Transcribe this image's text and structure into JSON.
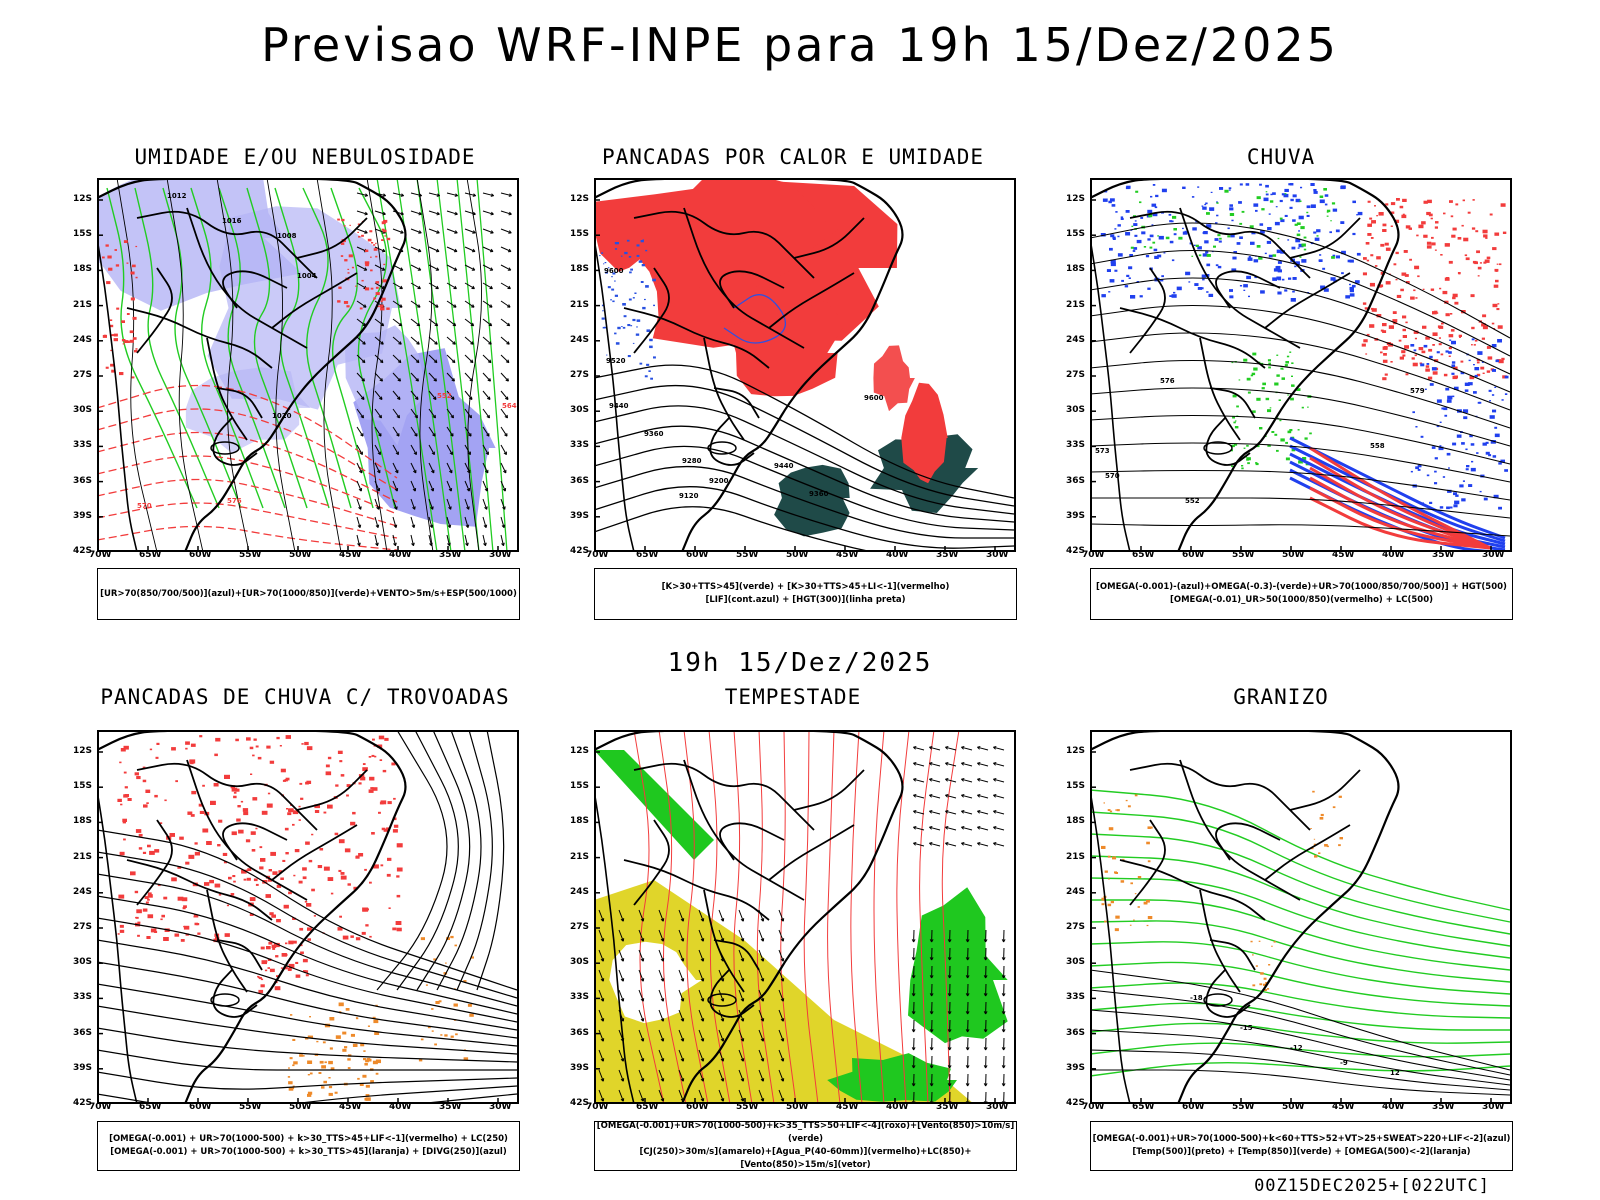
{
  "header": {
    "title": "Previsao WRF-INPE  para 19h 15/Dez/2025"
  },
  "mid_time": "19h 15/Dez/2025",
  "footer": "00Z15DEC2025+[022UTC]",
  "axes": {
    "lat_labels": [
      "12S",
      "15S",
      "18S",
      "21S",
      "24S",
      "27S",
      "30S",
      "33S",
      "36S",
      "39S",
      "42S"
    ],
    "lon_labels": [
      "70W",
      "65W",
      "60W",
      "55W",
      "50W",
      "45W",
      "40W",
      "35W",
      "30W"
    ]
  },
  "panels": [
    {
      "title": "UMIDADE E/OU NEBULOSIDADE",
      "legend": [
        "[UR>70(850/700/500)](azul)+[UR>70(1000/850)](verde)+VENTO>5m/s+ESP(500/1000)"
      ]
    },
    {
      "title": "PANCADAS POR CALOR E UMIDADE",
      "legend": [
        "[K>30+TTS>45](verde) + [K>30+TTS>45+LI<-1](vermelho)",
        "[LIF](cont.azul) + [HGT(300)](linha preta)"
      ]
    },
    {
      "title": "CHUVA",
      "legend": [
        "[OMEGA(-0.001)-(azul)+OMEGA(-0.3)-(verde)+UR>70(1000/850/700/500)] + HGT(500)",
        "[OMEGA(-0.01)_UR>50(1000/850)(vermelho) + LC(500)"
      ]
    },
    {
      "title": "PANCADAS DE CHUVA C/ TROVOADAS",
      "legend": [
        "[OMEGA(-0.001) + UR>70(1000-500) + k>30_TTS>45+LIF<-1](vermelho) + LC(250)",
        "[OMEGA(-0.001) + UR>70(1000-500) + k>30_TTS>45](laranja) + [DIVG(250)](azul)"
      ]
    },
    {
      "title": "TEMPESTADE",
      "legend": [
        "[OMEGA(-0.001)+UR>70(1000-500)+k>35_TTS>50+LIF<-4](roxo)+[Vento(850)>10m/s](verde)",
        "[CJ(250)>30m/s](amarelo)+[Agua_P(40-60mm)](vermelho)+LC(850)+[Vento(850)>15m/s](vetor)"
      ]
    },
    {
      "title": "GRANIZO",
      "legend": [
        "[OMEGA(-0.001)+UR>70(1000-500)+k<60+TTS>52+VT>25+SWEAT>220+LIF<-2](azul)",
        "[Temp(500)](preto) + [Temp(850)](verde) + [OMEGA(500)<-2](laranja)"
      ]
    }
  ],
  "contour_labels": {
    "p1": [
      "1012",
      "1008",
      "1004",
      "1016",
      "1020",
      "552",
      "564",
      "570",
      "576"
    ],
    "p2": [
      "9600",
      "9520",
      "9440",
      "9360",
      "9280",
      "9200",
      "9120"
    ],
    "p3": [
      "570",
      "573",
      "576",
      "579",
      "558",
      "552"
    ],
    "p6": [
      "-18",
      "-15",
      "-12",
      "-9",
      "12"
    ]
  },
  "colors": {
    "blue": "#8c8cf0",
    "lightblue": "#b4b4f5",
    "green": "#22cc22",
    "red": "#f23c3c",
    "darkteal": "#1f4a48",
    "orange": "#ee8a2a",
    "yellow": "#e0d52a",
    "lime": "#1fc81f",
    "pureblue": "#2040ee"
  }
}
